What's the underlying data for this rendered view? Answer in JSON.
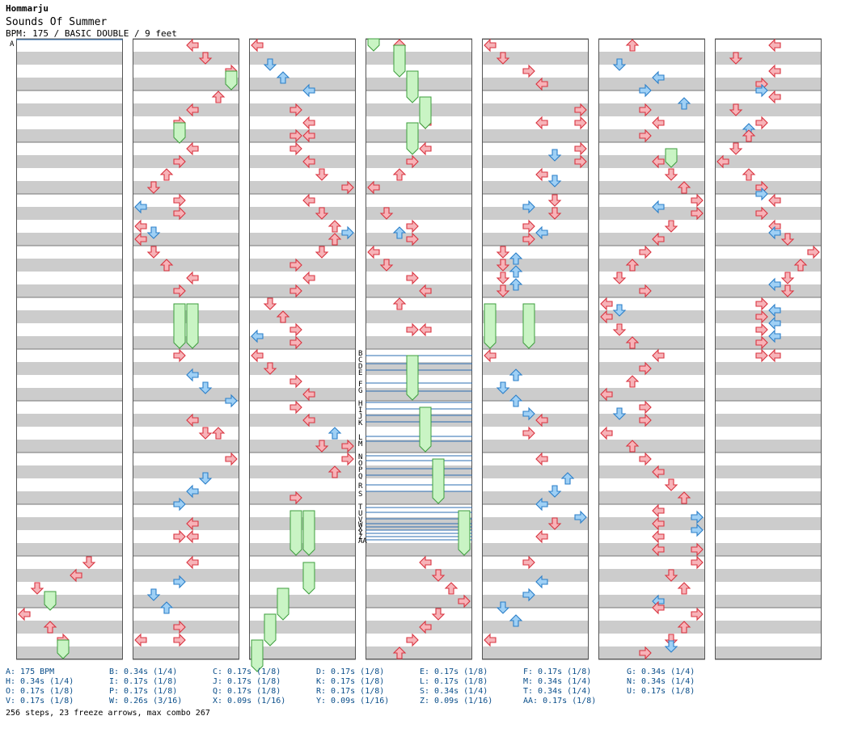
{
  "header": {
    "title": "Hommarju",
    "song": "Sounds Of Summer",
    "info": "BPM: 175 / BASIC DOUBLE / 9 feet"
  },
  "colors": {
    "band": "#cccccc",
    "arrow_red": "#f7b3b8",
    "arrow_red_stroke": "#d9333f",
    "arrow_blue": "#9fd0f5",
    "arrow_blue_stroke": "#2b7fc9",
    "freeze_fill": "#c9f4c4",
    "freeze_stroke": "#3d9e3d",
    "marker_line": "#2b6cb0"
  },
  "markers": [
    "A",
    "B",
    "C",
    "D",
    "E",
    "F",
    "G",
    "H",
    "I",
    "J",
    "K",
    "L",
    "M",
    "N",
    "O",
    "P",
    "Q",
    "R",
    "S",
    "T",
    "U",
    "V",
    "W",
    "X",
    "Y",
    "Z",
    "AA"
  ],
  "legend": [
    [
      "A: 175 BPM",
      "B: 0.34s (1/4)",
      "C: 0.17s (1/8)",
      "D: 0.17s (1/8)",
      "E: 0.17s (1/8)",
      "F: 0.17s (1/8)",
      "G: 0.34s (1/4)"
    ],
    [
      "H: 0.34s (1/4)",
      "I: 0.17s (1/8)",
      "J: 0.17s (1/8)",
      "K: 0.17s (1/8)",
      "L: 0.17s (1/8)",
      "M: 0.34s (1/4)",
      "N: 0.34s (1/4)"
    ],
    [
      "O: 0.17s (1/8)",
      "P: 0.17s (1/8)",
      "Q: 0.17s (1/8)",
      "R: 0.17s (1/8)",
      "S: 0.34s (1/4)",
      "T: 0.34s (1/4)",
      "U: 0.17s (1/8)"
    ],
    [
      "V: 0.17s (1/8)",
      "W: 0.26s (3/16)",
      "X: 0.09s (1/16)",
      "Y: 0.09s (1/16)",
      "Z: 0.09s (1/16)",
      "AA: 0.17s (1/8)"
    ]
  ],
  "summary": "256 steps, 23 freeze arrows, max combo 267"
}
